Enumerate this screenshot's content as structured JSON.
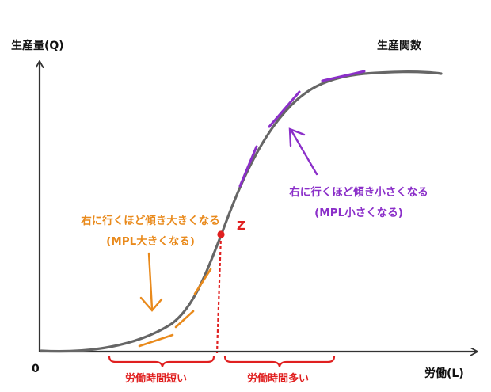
{
  "y_axis_label": "生産量(Q)",
  "x_axis_label": "労働(L)",
  "origin_label": "0",
  "curve_label": "生産関数",
  "point_label": "Z",
  "left_note": {
    "line1": "右に行くほど傾き大きくなる",
    "line2": "(MPL大きくなる)"
  },
  "right_note": {
    "line1": "右に行くほど傾き小さくなる",
    "line2": "(MPL小さくなる)"
  },
  "left_range_label": "労働時間短い",
  "right_range_label": "労働時間多い",
  "colors": {
    "axis": "#333333",
    "curve": "#666666",
    "increasing_slope": "#e98a1c",
    "decreasing_slope": "#8b2fc9",
    "inflection": "#e02020"
  }
}
